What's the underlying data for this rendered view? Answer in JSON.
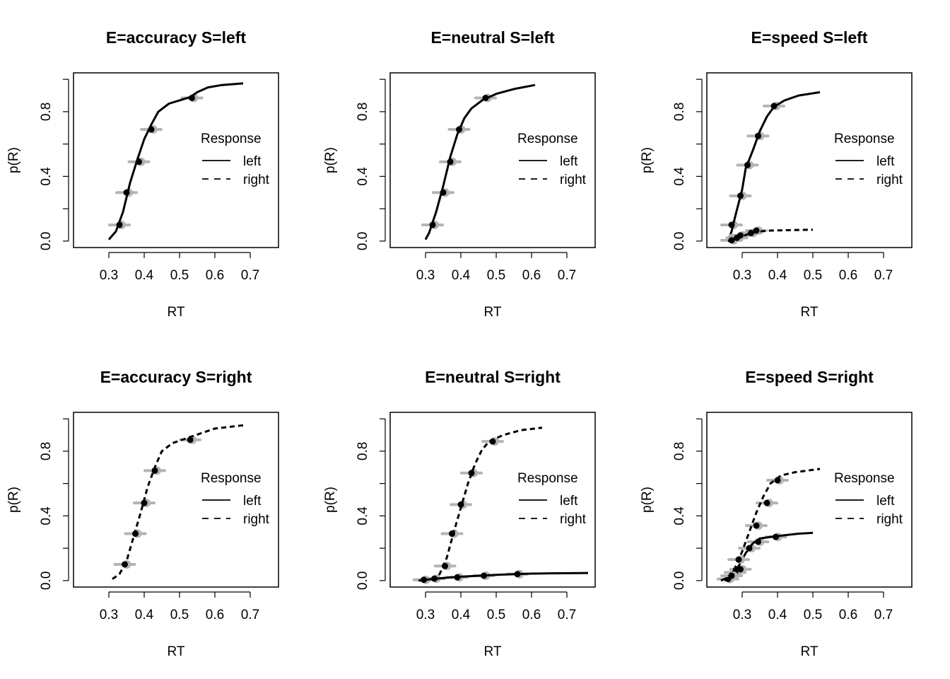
{
  "colors": {
    "observed": "#000000",
    "predicted_samples": "#b4b4b4"
  },
  "chart_data": [
    {
      "type": "line",
      "title": "E=accuracy S=left",
      "xlabel": "RT",
      "ylabel": "p(R)",
      "xlim": [
        0.2,
        0.78
      ],
      "ylim": [
        -0.04,
        1.04
      ],
      "xticks": [
        "0.3",
        "0.4",
        "0.5",
        "0.6",
        "0.7"
      ],
      "yticks": [
        "0.0",
        "0.4",
        "0.8"
      ],
      "legend": {
        "title": "Response",
        "entries": [
          "left",
          "right"
        ],
        "placement": "right"
      },
      "series": [
        {
          "name": "left",
          "linestyle": "solid",
          "curve": [
            [
              0.3,
              0.01
            ],
            [
              0.32,
              0.06
            ],
            [
              0.34,
              0.18
            ],
            [
              0.36,
              0.36
            ],
            [
              0.38,
              0.5
            ],
            [
              0.4,
              0.63
            ],
            [
              0.42,
              0.72
            ],
            [
              0.44,
              0.8
            ],
            [
              0.47,
              0.85
            ],
            [
              0.5,
              0.87
            ],
            [
              0.53,
              0.89
            ],
            [
              0.55,
              0.92
            ],
            [
              0.58,
              0.95
            ],
            [
              0.62,
              0.965
            ],
            [
              0.68,
              0.975
            ]
          ],
          "quantiles": [
            [
              0.33,
              0.1
            ],
            [
              0.35,
              0.3
            ],
            [
              0.385,
              0.49
            ],
            [
              0.42,
              0.69
            ],
            [
              0.535,
              0.885
            ]
          ]
        },
        {
          "name": "right",
          "linestyle": "dashed",
          "curve": [],
          "quantiles": []
        }
      ]
    },
    {
      "type": "line",
      "title": "E=neutral S=left",
      "xlabel": "RT",
      "ylabel": "p(R)",
      "xlim": [
        0.2,
        0.78
      ],
      "ylim": [
        -0.04,
        1.04
      ],
      "xticks": [
        "0.3",
        "0.4",
        "0.5",
        "0.6",
        "0.7"
      ],
      "yticks": [
        "0.0",
        "0.4",
        "0.8"
      ],
      "legend": {
        "title": "Response",
        "entries": [
          "left",
          "right"
        ],
        "placement": "right"
      },
      "series": [
        {
          "name": "left",
          "linestyle": "solid",
          "curve": [
            [
              0.3,
              0.01
            ],
            [
              0.31,
              0.05
            ],
            [
              0.33,
              0.18
            ],
            [
              0.35,
              0.34
            ],
            [
              0.37,
              0.52
            ],
            [
              0.39,
              0.66
            ],
            [
              0.41,
              0.76
            ],
            [
              0.43,
              0.82
            ],
            [
              0.46,
              0.87
            ],
            [
              0.5,
              0.91
            ],
            [
              0.55,
              0.94
            ],
            [
              0.61,
              0.965
            ]
          ],
          "quantiles": [
            [
              0.32,
              0.1
            ],
            [
              0.35,
              0.3
            ],
            [
              0.37,
              0.49
            ],
            [
              0.395,
              0.69
            ],
            [
              0.47,
              0.885
            ]
          ]
        },
        {
          "name": "right",
          "linestyle": "dashed",
          "curve": [],
          "quantiles": []
        }
      ]
    },
    {
      "type": "line",
      "title": "E=speed S=left",
      "xlabel": "RT",
      "ylabel": "p(R)",
      "xlim": [
        0.2,
        0.78
      ],
      "ylim": [
        -0.04,
        1.04
      ],
      "xticks": [
        "0.3",
        "0.4",
        "0.5",
        "0.6",
        "0.7"
      ],
      "yticks": [
        "0.0",
        "0.4",
        "0.8"
      ],
      "legend": {
        "title": "Response",
        "entries": [
          "left",
          "right"
        ],
        "placement": "right"
      },
      "series": [
        {
          "name": "left",
          "linestyle": "solid",
          "curve": [
            [
              0.26,
              0.0
            ],
            [
              0.27,
              0.06
            ],
            [
              0.28,
              0.15
            ],
            [
              0.3,
              0.32
            ],
            [
              0.31,
              0.45
            ],
            [
              0.33,
              0.56
            ],
            [
              0.35,
              0.68
            ],
            [
              0.37,
              0.77
            ],
            [
              0.39,
              0.83
            ],
            [
              0.42,
              0.87
            ],
            [
              0.46,
              0.9
            ],
            [
              0.52,
              0.92
            ]
          ],
          "quantiles": [
            [
              0.27,
              0.1
            ],
            [
              0.295,
              0.28
            ],
            [
              0.315,
              0.47
            ],
            [
              0.345,
              0.65
            ],
            [
              0.39,
              0.835
            ]
          ]
        },
        {
          "name": "right",
          "linestyle": "dashed",
          "curve": [
            [
              0.26,
              0.0
            ],
            [
              0.28,
              0.015
            ],
            [
              0.3,
              0.03
            ],
            [
              0.32,
              0.045
            ],
            [
              0.34,
              0.058
            ],
            [
              0.38,
              0.065
            ],
            [
              0.44,
              0.068
            ],
            [
              0.5,
              0.07
            ]
          ],
          "quantiles": [
            [
              0.27,
              0.005
            ],
            [
              0.285,
              0.02
            ],
            [
              0.295,
              0.035
            ],
            [
              0.325,
              0.05
            ],
            [
              0.34,
              0.065
            ]
          ]
        }
      ]
    },
    {
      "type": "line",
      "title": "E=accuracy S=right",
      "xlabel": "RT",
      "ylabel": "p(R)",
      "xlim": [
        0.2,
        0.78
      ],
      "ylim": [
        -0.04,
        1.04
      ],
      "xticks": [
        "0.3",
        "0.4",
        "0.5",
        "0.6",
        "0.7"
      ],
      "yticks": [
        "0.0",
        "0.4",
        "0.8"
      ],
      "legend": {
        "title": "Response",
        "entries": [
          "left",
          "right"
        ],
        "placement": "right"
      },
      "series": [
        {
          "name": "left",
          "linestyle": "solid",
          "curve": [],
          "quantiles": []
        },
        {
          "name": "right",
          "linestyle": "dashed",
          "curve": [
            [
              0.31,
              0.01
            ],
            [
              0.33,
              0.04
            ],
            [
              0.35,
              0.12
            ],
            [
              0.37,
              0.27
            ],
            [
              0.39,
              0.42
            ],
            [
              0.41,
              0.58
            ],
            [
              0.43,
              0.7
            ],
            [
              0.45,
              0.8
            ],
            [
              0.48,
              0.85
            ],
            [
              0.52,
              0.88
            ],
            [
              0.56,
              0.91
            ],
            [
              0.6,
              0.94
            ],
            [
              0.68,
              0.96
            ]
          ],
          "quantiles": [
            [
              0.345,
              0.1
            ],
            [
              0.375,
              0.29
            ],
            [
              0.4,
              0.48
            ],
            [
              0.43,
              0.68
            ],
            [
              0.53,
              0.87
            ]
          ]
        }
      ]
    },
    {
      "type": "line",
      "title": "E=neutral S=right",
      "xlabel": "RT",
      "ylabel": "p(R)",
      "xlim": [
        0.2,
        0.78
      ],
      "ylim": [
        -0.04,
        1.04
      ],
      "xticks": [
        "0.3",
        "0.4",
        "0.5",
        "0.6",
        "0.7"
      ],
      "yticks": [
        "0.0",
        "0.4",
        "0.8"
      ],
      "legend": {
        "title": "Response",
        "entries": [
          "left",
          "right"
        ],
        "placement": "right"
      },
      "series": [
        {
          "name": "left",
          "linestyle": "solid",
          "curve": [
            [
              0.28,
              0.0
            ],
            [
              0.32,
              0.01
            ],
            [
              0.36,
              0.018
            ],
            [
              0.4,
              0.024
            ],
            [
              0.45,
              0.03
            ],
            [
              0.5,
              0.035
            ],
            [
              0.55,
              0.04
            ],
            [
              0.6,
              0.043
            ],
            [
              0.65,
              0.045
            ],
            [
              0.76,
              0.047
            ]
          ],
          "quantiles": [
            [
              0.295,
              0.005
            ],
            [
              0.325,
              0.012
            ],
            [
              0.39,
              0.02
            ],
            [
              0.465,
              0.03
            ],
            [
              0.56,
              0.04
            ]
          ]
        },
        {
          "name": "right",
          "linestyle": "dashed",
          "curve": [
            [
              0.32,
              0.0
            ],
            [
              0.34,
              0.04
            ],
            [
              0.36,
              0.14
            ],
            [
              0.38,
              0.3
            ],
            [
              0.4,
              0.45
            ],
            [
              0.42,
              0.6
            ],
            [
              0.44,
              0.72
            ],
            [
              0.46,
              0.81
            ],
            [
              0.48,
              0.86
            ],
            [
              0.52,
              0.9
            ],
            [
              0.57,
              0.93
            ],
            [
              0.63,
              0.945
            ]
          ],
          "quantiles": [
            [
              0.355,
              0.09
            ],
            [
              0.375,
              0.29
            ],
            [
              0.4,
              0.47
            ],
            [
              0.43,
              0.665
            ],
            [
              0.49,
              0.86
            ]
          ]
        }
      ]
    },
    {
      "type": "line",
      "title": "E=speed S=right",
      "xlabel": "RT",
      "ylabel": "p(R)",
      "xlim": [
        0.2,
        0.78
      ],
      "ylim": [
        -0.04,
        1.04
      ],
      "xticks": [
        "0.3",
        "0.4",
        "0.5",
        "0.6",
        "0.7"
      ],
      "yticks": [
        "0.0",
        "0.4",
        "0.8"
      ],
      "legend": {
        "title": "Response",
        "entries": [
          "left",
          "right"
        ],
        "placement": "right"
      },
      "series": [
        {
          "name": "left",
          "linestyle": "solid",
          "curve": [
            [
              0.25,
              0.0
            ],
            [
              0.27,
              0.03
            ],
            [
              0.29,
              0.09
            ],
            [
              0.31,
              0.17
            ],
            [
              0.33,
              0.23
            ],
            [
              0.35,
              0.26
            ],
            [
              0.38,
              0.27
            ],
            [
              0.42,
              0.28
            ],
            [
              0.46,
              0.29
            ],
            [
              0.5,
              0.295
            ]
          ],
          "quantiles": [
            [
              0.26,
              0.01
            ],
            [
              0.28,
              0.05
            ],
            [
              0.295,
              0.07
            ],
            [
              0.32,
              0.2
            ],
            [
              0.345,
              0.24
            ],
            [
              0.395,
              0.27
            ]
          ]
        },
        {
          "name": "right",
          "linestyle": "dashed",
          "curve": [
            [
              0.24,
              0.0
            ],
            [
              0.26,
              0.02
            ],
            [
              0.28,
              0.08
            ],
            [
              0.3,
              0.18
            ],
            [
              0.32,
              0.3
            ],
            [
              0.34,
              0.42
            ],
            [
              0.36,
              0.52
            ],
            [
              0.38,
              0.6
            ],
            [
              0.41,
              0.65
            ],
            [
              0.45,
              0.67
            ],
            [
              0.52,
              0.69
            ]
          ],
          "quantiles": [
            [
              0.27,
              0.03
            ],
            [
              0.29,
              0.13
            ],
            [
              0.34,
              0.34
            ],
            [
              0.37,
              0.48
            ],
            [
              0.4,
              0.62
            ]
          ]
        }
      ]
    }
  ]
}
